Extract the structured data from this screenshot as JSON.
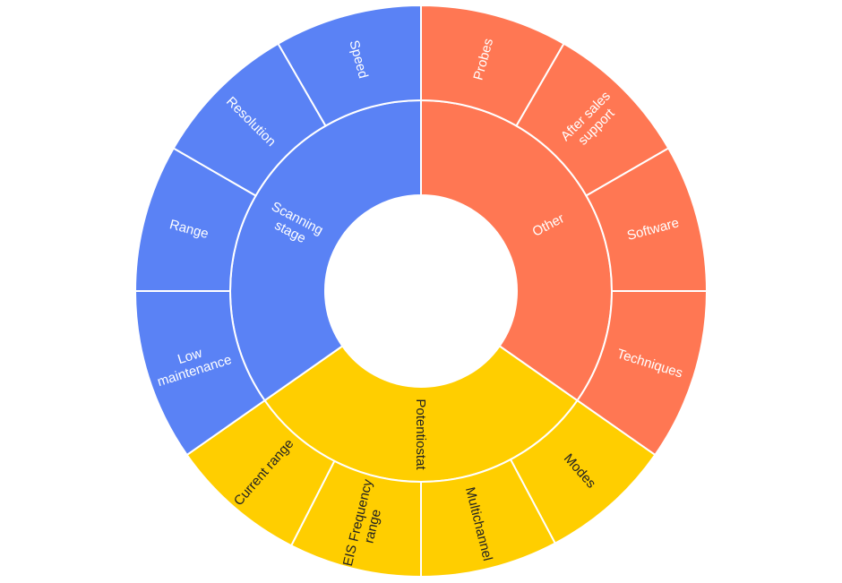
{
  "chart_data": {
    "type": "sunburst",
    "title": "",
    "colors": {
      "Other": "#FF7753",
      "Potentiostat": "#FFCE00",
      "Scanning stage": "#5A82F5"
    },
    "inner_start_deg": 0,
    "inner": [
      {
        "name": "Other",
        "label": "Other",
        "start": 0,
        "end": 125
      },
      {
        "name": "Potentiostat",
        "label": "Potentiostat",
        "start": 125,
        "end": 235
      },
      {
        "name": "Scanning stage",
        "label": "Scanning\nstage",
        "start": 235,
        "end": 360
      }
    ],
    "outer": [
      {
        "label": "Probes",
        "parent": "Other",
        "start": 0,
        "end": 30
      },
      {
        "label": "After sales\nsupport",
        "parent": "Other",
        "start": 30,
        "end": 60
      },
      {
        "label": "Software",
        "parent": "Other",
        "start": 60,
        "end": 90
      },
      {
        "label": "Techniques",
        "parent": "Other",
        "start": 90,
        "end": 125
      },
      {
        "label": "Modes",
        "parent": "Potentiostat",
        "start": 125,
        "end": 152
      },
      {
        "label": "Multichannel",
        "parent": "Potentiostat",
        "start": 152,
        "end": 180
      },
      {
        "label": "EIS Frequency\nrange",
        "parent": "Potentiostat",
        "start": 180,
        "end": 207
      },
      {
        "label": "Current range",
        "parent": "Potentiostat",
        "start": 207,
        "end": 235
      },
      {
        "label": "Low\nmaintenance",
        "parent": "Scanning stage",
        "start": 235,
        "end": 270
      },
      {
        "label": "Range",
        "parent": "Scanning stage",
        "start": 270,
        "end": 300
      },
      {
        "label": "Resolution",
        "parent": "Scanning stage",
        "start": 300,
        "end": 330
      },
      {
        "label": "Speed",
        "parent": "Scanning stage",
        "start": 330,
        "end": 360
      }
    ]
  }
}
